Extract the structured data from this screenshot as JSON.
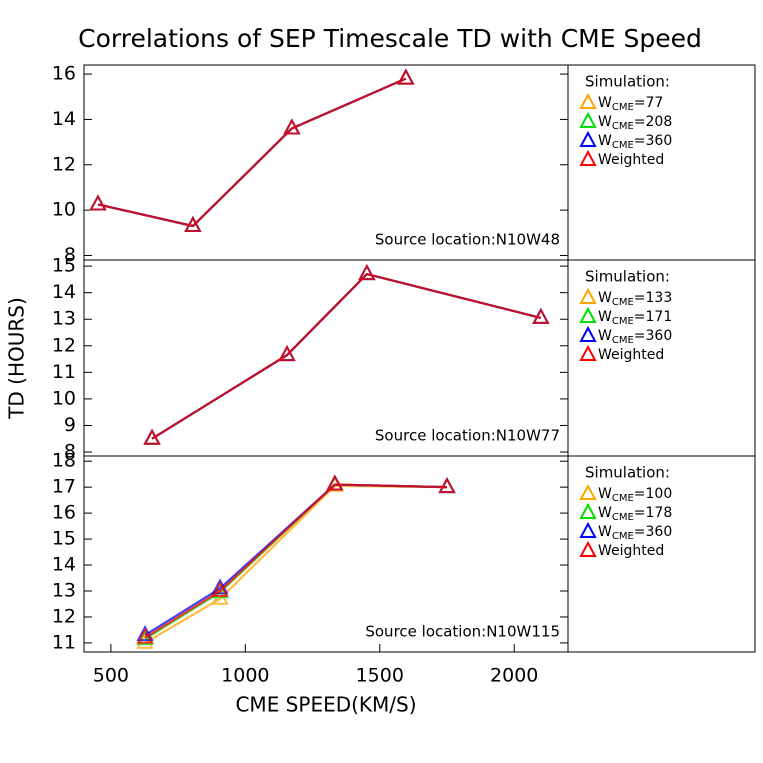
{
  "chart_data": [
    {
      "type": "line",
      "title": "Correlations of SEP Timescale TD with CME Speed",
      "legend_title": "Simulation:",
      "annotation": "Source location:N10W48",
      "x": [
        452,
        805,
        1173,
        1597
      ],
      "xlim": [
        400,
        2200
      ],
      "ylim": [
        7.8,
        16.4
      ],
      "yticks": [
        8,
        10,
        12,
        14,
        16
      ],
      "series": [
        {
          "name": "WCME=77",
          "color": "#ffa500",
          "values": [
            10.25,
            9.3,
            13.6,
            15.8
          ]
        },
        {
          "name": "WCME=208",
          "color": "#00e000",
          "values": [
            10.25,
            9.3,
            13.6,
            15.8
          ]
        },
        {
          "name": "WCME=360",
          "color": "#0000ff",
          "values": [
            10.25,
            9.3,
            13.6,
            15.8
          ]
        },
        {
          "name": "Weighted",
          "color": "#ff0000",
          "values": [
            10.25,
            9.3,
            13.6,
            15.8
          ]
        }
      ]
    },
    {
      "type": "line",
      "ylabel": "TD (HOURS)",
      "legend_title": "Simulation:",
      "annotation": "Source location:N10W77",
      "x": [
        653,
        1155,
        1452,
        2099
      ],
      "xlim": [
        400,
        2200
      ],
      "ylim": [
        7.85,
        15.23
      ],
      "yticks": [
        8,
        9,
        10,
        11,
        12,
        13,
        14,
        15
      ],
      "series": [
        {
          "name": "WCME=133",
          "color": "#ffa500",
          "values": [
            8.5,
            11.65,
            14.7,
            13.05
          ]
        },
        {
          "name": "WCME=171",
          "color": "#00e000",
          "values": [
            8.5,
            11.65,
            14.7,
            13.05
          ]
        },
        {
          "name": "WCME=360",
          "color": "#0000ff",
          "values": [
            8.5,
            11.65,
            14.7,
            13.05
          ]
        },
        {
          "name": "Weighted",
          "color": "#ff0000",
          "values": [
            8.5,
            11.65,
            14.7,
            13.05
          ]
        }
      ]
    },
    {
      "type": "line",
      "xlabel": "CME SPEED(KM/S)",
      "legend_title": "Simulation:",
      "annotation": "Source location:N10W115",
      "x": [
        627,
        906,
        1333,
        1750
      ],
      "xlim": [
        400,
        2200
      ],
      "xticks": [
        500,
        1000,
        1500,
        2000
      ],
      "ylim": [
        10.65,
        18.2
      ],
      "yticks": [
        11,
        12,
        13,
        14,
        15,
        16,
        17,
        18
      ],
      "series": [
        {
          "name": "WCME=100",
          "color": "#ffa500",
          "values": [
            11.0,
            12.7,
            17.05,
            17.0
          ]
        },
        {
          "name": "WCME=178",
          "color": "#00e000",
          "values": [
            11.15,
            12.95,
            17.1,
            17.0
          ]
        },
        {
          "name": "WCME=360",
          "color": "#0000ff",
          "values": [
            11.3,
            13.1,
            17.1,
            17.0
          ]
        },
        {
          "name": "Weighted",
          "color": "#ff0000",
          "values": [
            11.2,
            13.0,
            17.1,
            17.0
          ]
        }
      ]
    }
  ]
}
